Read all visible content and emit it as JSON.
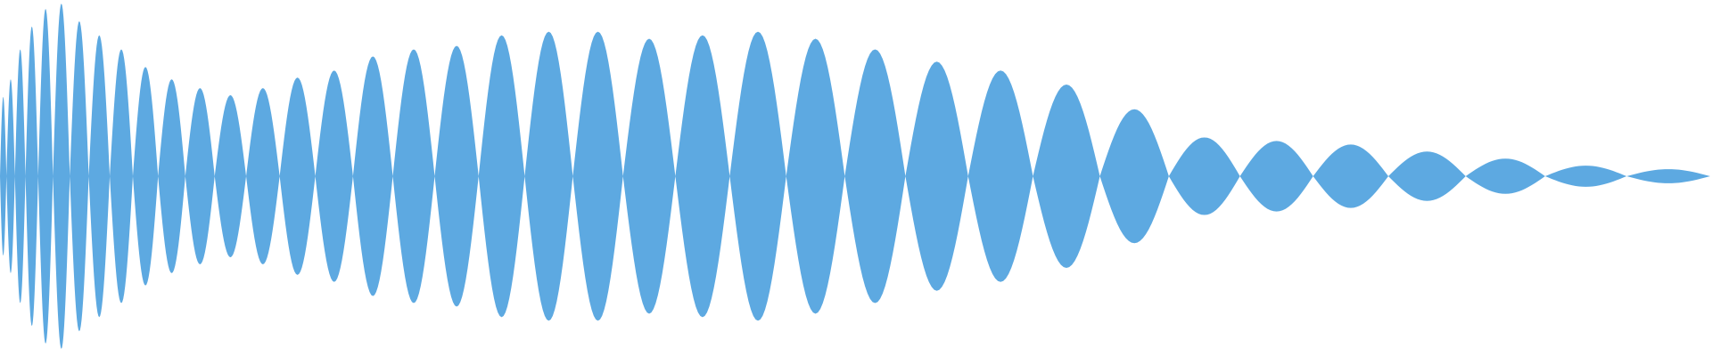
{
  "waveform": {
    "fill_color": "#5DA9E1",
    "background_color": "#FFFFFF",
    "lobe_amplitudes": [
      0.45,
      0.55,
      0.72,
      0.85,
      0.95,
      0.98,
      0.88,
      0.8,
      0.72,
      0.62,
      0.55,
      0.5,
      0.46,
      0.5,
      0.56,
      0.6,
      0.68,
      0.72,
      0.74,
      0.8,
      0.82,
      0.82,
      0.78,
      0.8,
      0.82,
      0.78,
      0.72,
      0.65,
      0.6,
      0.52,
      0.38,
      0.22,
      0.2,
      0.18,
      0.14,
      0.1,
      0.06,
      0.04
    ]
  }
}
